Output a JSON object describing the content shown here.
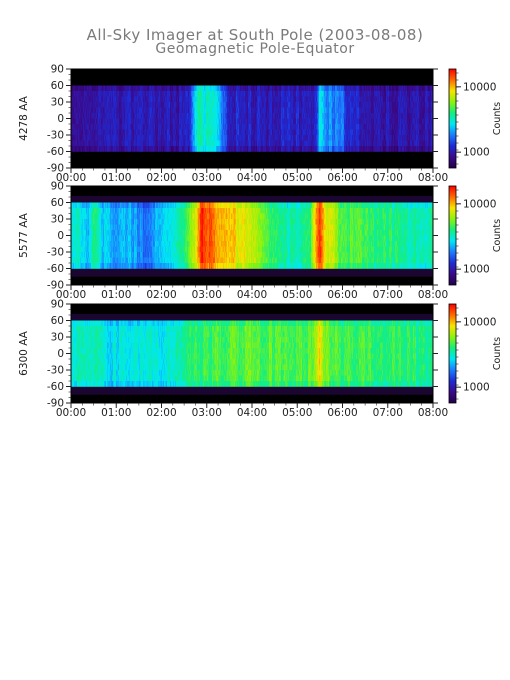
{
  "title": "All-Sky Imager at South Pole (2003-08-08)",
  "subtitle": "Geomagnetic Pole-Equator",
  "colors": {
    "frame": "#000000",
    "tick_text": "#222222",
    "title_text": "#7a7a7a",
    "colormap": [
      "#23004a",
      "#3a0a8a",
      "#1f2bd6",
      "#1d7bff",
      "#00e7f5",
      "#15ee7c",
      "#8cf30f",
      "#f7e400",
      "#ff6a00",
      "#ff0000"
    ]
  },
  "chart_data": [
    {
      "type": "heatmap",
      "ylabel": "4278 AA",
      "yticks": [
        "90",
        "60",
        "30",
        "0",
        "-30",
        "-60",
        "-90"
      ],
      "xticks": [
        "00:00",
        "01:00",
        "02:00",
        "03:00",
        "04:00",
        "05:00",
        "06:00",
        "07:00",
        "08:00"
      ],
      "xrange": [
        "00:00",
        "08:00"
      ],
      "ylim": [
        -90,
        90
      ],
      "data_lat_range": [
        -60,
        60
      ],
      "colorbar": {
        "label": "Counts",
        "ticks": [
          "10000",
          "1000"
        ],
        "scale": "log"
      },
      "profile_hours": [
        0,
        0.5,
        1,
        1.5,
        2,
        2.4,
        2.6,
        2.75,
        2.85,
        3.0,
        3.15,
        3.3,
        3.5,
        4.0,
        4.5,
        5.0,
        5.3,
        5.45,
        5.5,
        5.6,
        5.8,
        6.0,
        6.1,
        6.5,
        7.0,
        7.5,
        8.0
      ],
      "profile_level": [
        0.16,
        0.16,
        0.16,
        0.17,
        0.17,
        0.17,
        0.19,
        0.45,
        0.52,
        0.47,
        0.5,
        0.36,
        0.2,
        0.18,
        0.18,
        0.18,
        0.18,
        0.24,
        0.47,
        0.36,
        0.34,
        0.33,
        0.22,
        0.17,
        0.16,
        0.16,
        0.16
      ]
    },
    {
      "type": "heatmap",
      "ylabel": "5577 AA",
      "yticks": [
        "90",
        "60",
        "30",
        "0",
        "-30",
        "-60",
        "-90"
      ],
      "xticks": [
        "00:00",
        "01:00",
        "02:00",
        "03:00",
        "04:00",
        "05:00",
        "06:00",
        "07:00",
        "08:00"
      ],
      "xrange": [
        "00:00",
        "08:00"
      ],
      "ylim": [
        -90,
        90
      ],
      "data_lat_range": [
        -60,
        60
      ],
      "colorbar": {
        "label": "Counts",
        "ticks": [
          "10000",
          "1000"
        ],
        "scale": "log"
      },
      "profile_hours": [
        0,
        0.2,
        0.4,
        0.5,
        0.7,
        1.0,
        1.3,
        1.6,
        2.0,
        2.3,
        2.6,
        2.7,
        2.8,
        2.9,
        3.0,
        3.2,
        3.4,
        3.6,
        3.8,
        4.0,
        4.3,
        4.6,
        5.0,
        5.3,
        5.45,
        5.5,
        5.6,
        5.8,
        6.0,
        6.5,
        7.0,
        7.5,
        8.0
      ],
      "profile_level": [
        0.48,
        0.46,
        0.42,
        0.55,
        0.42,
        0.36,
        0.4,
        0.34,
        0.38,
        0.48,
        0.62,
        0.72,
        0.82,
        0.96,
        0.92,
        0.85,
        0.78,
        0.8,
        0.74,
        0.75,
        0.62,
        0.52,
        0.5,
        0.58,
        0.9,
        0.96,
        0.78,
        0.7,
        0.62,
        0.58,
        0.55,
        0.53,
        0.52
      ]
    },
    {
      "type": "heatmap",
      "ylabel": "6300 AA",
      "yticks": [
        "90",
        "60",
        "30",
        "0",
        "-30",
        "-60",
        "-90"
      ],
      "xticks": [
        "00:00",
        "01:00",
        "02:00",
        "03:00",
        "04:00",
        "05:00",
        "06:00",
        "07:00",
        "08:00"
      ],
      "xrange": [
        "00:00",
        "08:00"
      ],
      "ylim": [
        -90,
        90
      ],
      "data_lat_range": [
        -60,
        60
      ],
      "colorbar": {
        "label": "Counts",
        "ticks": [
          "10000",
          "1000"
        ],
        "scale": "log"
      },
      "profile_hours": [
        0,
        0.3,
        0.6,
        0.8,
        1.0,
        1.5,
        2.0,
        2.5,
        2.8,
        3.0,
        3.2,
        3.5,
        4.0,
        4.5,
        5.0,
        5.3,
        5.45,
        5.5,
        5.6,
        6.0,
        6.5,
        7.0,
        7.5,
        8.0
      ],
      "profile_level": [
        0.5,
        0.5,
        0.48,
        0.44,
        0.46,
        0.45,
        0.47,
        0.52,
        0.58,
        0.6,
        0.6,
        0.62,
        0.62,
        0.6,
        0.6,
        0.62,
        0.72,
        0.8,
        0.66,
        0.6,
        0.58,
        0.57,
        0.56,
        0.55
      ]
    }
  ]
}
